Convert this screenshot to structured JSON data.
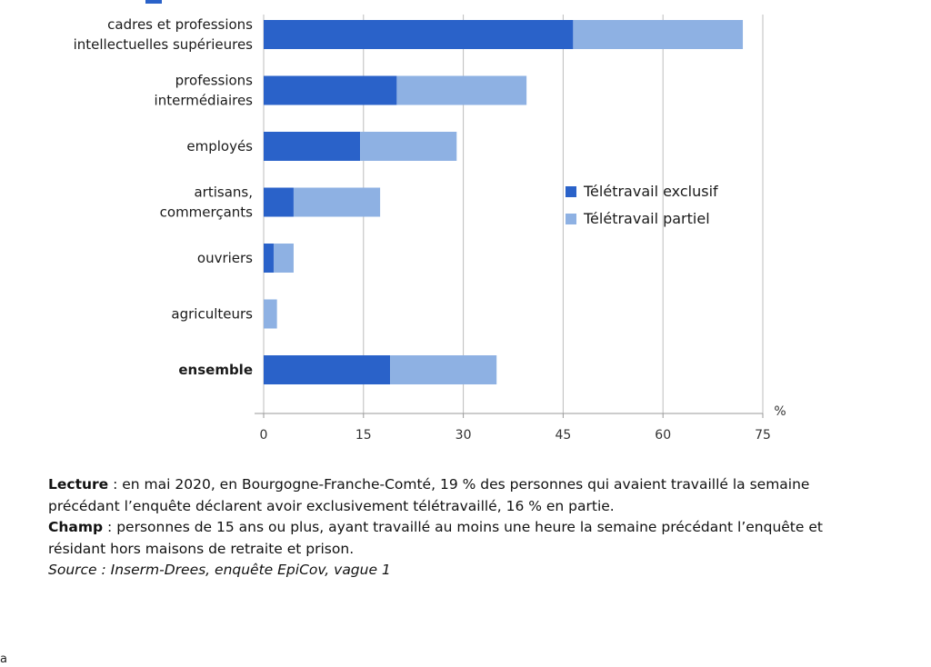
{
  "chart_data": {
    "type": "bar",
    "orientation": "horizontal",
    "stacked": true,
    "categories": [
      "cadres et professions intellectuelles supérieures",
      "professions intermédiaires",
      "employés",
      "artisans, commerçants",
      "ouvriers",
      "agriculteurs",
      "ensemble"
    ],
    "category_lines": [
      [
        "cadres et professions",
        "intellectuelles supérieures"
      ],
      [
        "professions",
        "intermédiaires"
      ],
      [
        "employés"
      ],
      [
        "artisans,",
        "commerçants"
      ],
      [
        "ouvriers"
      ],
      [
        "agriculteurs"
      ],
      [
        "ensemble"
      ]
    ],
    "bold_categories": [
      "ensemble"
    ],
    "series": [
      {
        "name": "Télétravail exclusif",
        "color": "#2a62c9",
        "values": [
          46.5,
          20,
          14.5,
          4.5,
          1.5,
          0,
          19
        ]
      },
      {
        "name": "Télétravail partiel",
        "color": "#8eb1e3",
        "values": [
          25.5,
          19.5,
          14.5,
          13,
          3,
          2,
          16
        ]
      }
    ],
    "xlim": [
      0,
      75
    ],
    "xticks": [
      "0",
      "15",
      "30",
      "45",
      "60",
      "75"
    ],
    "unit_label": "%",
    "grid": true,
    "legend_position": "right"
  },
  "notes": {
    "lecture_label": "Lecture",
    "lecture_text": " : en mai 2020, en Bourgogne-Franche-Comté, 19 % des personnes qui avaient travaillé la semaine précédant l’enquête déclarent avoir exclusivement télétravaillé, 16 % en partie.",
    "champ_label": "Champ",
    "champ_text": " : personnes de 15 ans ou plus, ayant travaillé au moins une heure la semaine précédant l’enquête et résidant hors maisons de retraite et prison.",
    "source": "Source : Inserm-Drees, enquête EpiCov, vague 1"
  },
  "corner_letter": "a"
}
